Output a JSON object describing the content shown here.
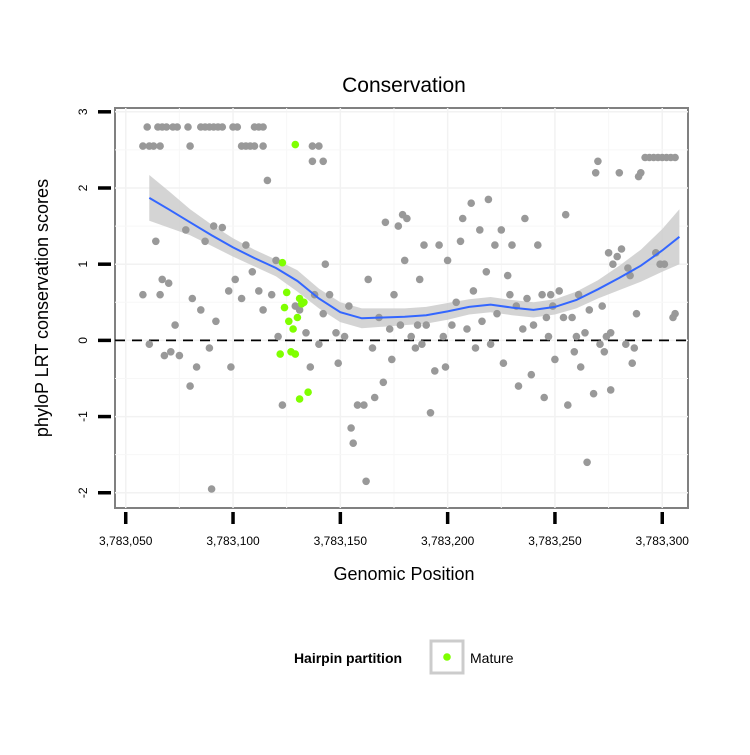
{
  "chart_data": {
    "type": "scatter",
    "title": "Conservation",
    "xlabel": "Genomic Position",
    "ylabel": "phyloP LRT conservation scores",
    "xlim": [
      3783045,
      3783312
    ],
    "ylim": [
      -2.2,
      3.05
    ],
    "x_ticks": [
      3783050,
      3783100,
      3783150,
      3783200,
      3783250,
      3783300
    ],
    "x_tick_labels": [
      "3,783,050",
      "3,783,100",
      "3,783,150",
      "3,783,200",
      "3,783,250",
      "3,783,300"
    ],
    "y_ticks": [
      -2,
      -1,
      0,
      1,
      2,
      3
    ],
    "y_tick_labels": [
      "-2",
      "-1",
      "0",
      "1",
      "2",
      "3"
    ],
    "reference_line": {
      "y": 0,
      "style": "dashed"
    },
    "grid": true,
    "legend": {
      "title": "Hairpin partition",
      "placement": "bottom",
      "entries": [
        {
          "label": "Mature",
          "color": "#7fff00"
        }
      ]
    },
    "colors": {
      "other": "#999999",
      "mature": "#7fff00",
      "smooth": "#3366ff",
      "ribbon": "#cccccc"
    },
    "series": [
      {
        "name": "",
        "color": "#999999",
        "points": [
          [
            3783060,
            2.8
          ],
          [
            3783065,
            2.8
          ],
          [
            3783067,
            2.8
          ],
          [
            3783069,
            2.8
          ],
          [
            3783072,
            2.8
          ],
          [
            3783074,
            2.8
          ],
          [
            3783079,
            2.8
          ],
          [
            3783085,
            2.8
          ],
          [
            3783087,
            2.8
          ],
          [
            3783089,
            2.8
          ],
          [
            3783091,
            2.8
          ],
          [
            3783093,
            2.8
          ],
          [
            3783095,
            2.8
          ],
          [
            3783100,
            2.8
          ],
          [
            3783102,
            2.8
          ],
          [
            3783110,
            2.8
          ],
          [
            3783112,
            2.8
          ],
          [
            3783114,
            2.8
          ],
          [
            3783058,
            2.55
          ],
          [
            3783061,
            2.55
          ],
          [
            3783063,
            2.55
          ],
          [
            3783066,
            2.55
          ],
          [
            3783080,
            2.55
          ],
          [
            3783104,
            2.55
          ],
          [
            3783106,
            2.55
          ],
          [
            3783108,
            2.55
          ],
          [
            3783110,
            2.55
          ],
          [
            3783114,
            2.55
          ],
          [
            3783137,
            2.55
          ],
          [
            3783140,
            2.55
          ],
          [
            3783137,
            2.35
          ],
          [
            3783142,
            2.35
          ],
          [
            3783116,
            2.1
          ],
          [
            3783058,
            0.6
          ],
          [
            3783064,
            1.3
          ],
          [
            3783066,
            0.6
          ],
          [
            3783067,
            0.8
          ],
          [
            3783070,
            0.75
          ],
          [
            3783073,
            0.2
          ],
          [
            3783075,
            -0.2
          ],
          [
            3783078,
            1.45
          ],
          [
            3783080,
            -0.6
          ],
          [
            3783081,
            0.55
          ],
          [
            3783083,
            -0.35
          ],
          [
            3783085,
            0.4
          ],
          [
            3783087,
            1.3
          ],
          [
            3783089,
            -0.1
          ],
          [
            3783091,
            1.5
          ],
          [
            3783092,
            0.25
          ],
          [
            3783095,
            1.48
          ],
          [
            3783098,
            0.65
          ],
          [
            3783099,
            -0.35
          ],
          [
            3783101,
            0.8
          ],
          [
            3783104,
            0.55
          ],
          [
            3783106,
            1.25
          ],
          [
            3783109,
            0.9
          ],
          [
            3783112,
            0.65
          ],
          [
            3783114,
            0.4
          ],
          [
            3783118,
            0.6
          ],
          [
            3783120,
            1.05
          ],
          [
            3783090,
            -1.95
          ],
          [
            3783061,
            -0.05
          ],
          [
            3783068,
            -0.2
          ],
          [
            3783071,
            -0.15
          ],
          [
            3783121,
            0.05
          ],
          [
            3783123,
            -0.85
          ],
          [
            3783129,
            0.45
          ],
          [
            3783131,
            0.4
          ],
          [
            3783134,
            0.1
          ],
          [
            3783136,
            -0.35
          ],
          [
            3783138,
            0.6
          ],
          [
            3783140,
            -0.05
          ],
          [
            3783142,
            0.35
          ],
          [
            3783143,
            1.0
          ],
          [
            3783145,
            0.6
          ],
          [
            3783148,
            0.1
          ],
          [
            3783149,
            -0.3
          ],
          [
            3783152,
            0.05
          ],
          [
            3783154,
            0.45
          ],
          [
            3783155,
            -1.15
          ],
          [
            3783156,
            -1.35
          ],
          [
            3783158,
            -0.85
          ],
          [
            3783161,
            -0.85
          ],
          [
            3783162,
            -1.85
          ],
          [
            3783163,
            0.8
          ],
          [
            3783165,
            -0.1
          ],
          [
            3783166,
            -0.75
          ],
          [
            3783168,
            0.3
          ],
          [
            3783170,
            -0.55
          ],
          [
            3783171,
            1.55
          ],
          [
            3783173,
            0.15
          ],
          [
            3783174,
            -0.25
          ],
          [
            3783175,
            0.6
          ],
          [
            3783177,
            1.5
          ],
          [
            3783178,
            0.2
          ],
          [
            3783179,
            1.65
          ],
          [
            3783180,
            1.05
          ],
          [
            3783181,
            1.6
          ],
          [
            3783183,
            0.05
          ],
          [
            3783185,
            -0.1
          ],
          [
            3783186,
            0.2
          ],
          [
            3783187,
            0.8
          ],
          [
            3783188,
            -0.05
          ],
          [
            3783189,
            1.25
          ],
          [
            3783190,
            0.2
          ],
          [
            3783192,
            -0.95
          ],
          [
            3783194,
            -0.4
          ],
          [
            3783196,
            1.25
          ],
          [
            3783198,
            0.05
          ],
          [
            3783199,
            -0.35
          ],
          [
            3783200,
            1.05
          ],
          [
            3783202,
            0.2
          ],
          [
            3783204,
            0.5
          ],
          [
            3783206,
            1.3
          ],
          [
            3783207,
            1.6
          ],
          [
            3783209,
            0.15
          ],
          [
            3783211,
            1.8
          ],
          [
            3783212,
            0.65
          ],
          [
            3783213,
            -0.1
          ],
          [
            3783215,
            1.45
          ],
          [
            3783216,
            0.25
          ],
          [
            3783218,
            0.9
          ],
          [
            3783219,
            1.85
          ],
          [
            3783220,
            -0.05
          ],
          [
            3783222,
            1.25
          ],
          [
            3783223,
            0.35
          ],
          [
            3783225,
            1.45
          ],
          [
            3783226,
            -0.3
          ],
          [
            3783228,
            0.85
          ],
          [
            3783229,
            0.6
          ],
          [
            3783230,
            1.25
          ],
          [
            3783232,
            0.45
          ],
          [
            3783233,
            -0.6
          ],
          [
            3783235,
            0.15
          ],
          [
            3783236,
            1.6
          ],
          [
            3783237,
            0.55
          ],
          [
            3783239,
            -0.45
          ],
          [
            3783240,
            0.2
          ],
          [
            3783242,
            1.25
          ],
          [
            3783244,
            0.6
          ],
          [
            3783245,
            -0.75
          ],
          [
            3783246,
            0.3
          ],
          [
            3783247,
            0.05
          ],
          [
            3783248,
            0.6
          ],
          [
            3783249,
            0.45
          ],
          [
            3783250,
            -0.25
          ],
          [
            3783252,
            0.65
          ],
          [
            3783254,
            0.3
          ],
          [
            3783255,
            1.65
          ],
          [
            3783256,
            -0.85
          ],
          [
            3783258,
            0.3
          ],
          [
            3783259,
            -0.15
          ],
          [
            3783260,
            0.05
          ],
          [
            3783261,
            0.6
          ],
          [
            3783262,
            -0.35
          ],
          [
            3783264,
            0.1
          ],
          [
            3783265,
            -1.6
          ],
          [
            3783266,
            0.4
          ],
          [
            3783268,
            -0.7
          ],
          [
            3783269,
            2.2
          ],
          [
            3783270,
            2.35
          ],
          [
            3783271,
            -0.05
          ],
          [
            3783272,
            0.45
          ],
          [
            3783273,
            -0.15
          ],
          [
            3783275,
            1.15
          ],
          [
            3783276,
            0.1
          ],
          [
            3783277,
            1.0
          ],
          [
            3783279,
            1.1
          ],
          [
            3783280,
            2.2
          ],
          [
            3783281,
            1.2
          ],
          [
            3783283,
            -0.05
          ],
          [
            3783284,
            0.95
          ],
          [
            3783285,
            0.85
          ],
          [
            3783286,
            -0.3
          ],
          [
            3783288,
            0.35
          ],
          [
            3783289,
            2.15
          ],
          [
            3783290,
            2.2
          ],
          [
            3783292,
            2.4
          ],
          [
            3783294,
            2.4
          ],
          [
            3783296,
            2.4
          ],
          [
            3783298,
            2.4
          ],
          [
            3783300,
            2.4
          ],
          [
            3783302,
            2.4
          ],
          [
            3783304,
            2.4
          ],
          [
            3783306,
            2.4
          ],
          [
            3783297,
            1.15
          ],
          [
            3783299,
            1.0
          ],
          [
            3783301,
            1.0
          ],
          [
            3783305,
            0.3
          ],
          [
            3783306,
            0.35
          ],
          [
            3783274,
            0.05
          ],
          [
            3783276,
            -0.65
          ],
          [
            3783287,
            -0.1
          ]
        ]
      },
      {
        "name": "Mature",
        "color": "#7fff00",
        "points": [
          [
            3783129,
            2.57
          ],
          [
            3783123,
            1.02
          ],
          [
            3783124,
            0.43
          ],
          [
            3783125,
            0.63
          ],
          [
            3783126,
            0.25
          ],
          [
            3783127,
            -0.15
          ],
          [
            3783128,
            0.15
          ],
          [
            3783130,
            0.3
          ],
          [
            3783131,
            0.55
          ],
          [
            3783132,
            0.48
          ],
          [
            3783133,
            0.5
          ],
          [
            3783122,
            -0.18
          ],
          [
            3783129,
            -0.18
          ],
          [
            3783131,
            -0.77
          ],
          [
            3783135,
            -0.68
          ]
        ]
      }
    ],
    "smooth": {
      "color": "#3366ff",
      "x": [
        3783061,
        3783070,
        3783080,
        3783090,
        3783100,
        3783110,
        3783120,
        3783130,
        3783140,
        3783150,
        3783160,
        3783170,
        3783180,
        3783190,
        3783200,
        3783210,
        3783220,
        3783230,
        3783240,
        3783250,
        3783260,
        3783270,
        3783280,
        3783290,
        3783300,
        3783308
      ],
      "y": [
        1.87,
        1.72,
        1.55,
        1.38,
        1.22,
        1.08,
        0.95,
        0.78,
        0.55,
        0.37,
        0.29,
        0.3,
        0.31,
        0.33,
        0.38,
        0.44,
        0.47,
        0.43,
        0.4,
        0.44,
        0.53,
        0.67,
        0.82,
        0.98,
        1.18,
        1.36
      ],
      "lower": [
        1.57,
        1.48,
        1.38,
        1.24,
        1.1,
        0.97,
        0.84,
        0.64,
        0.42,
        0.24,
        0.16,
        0.18,
        0.2,
        0.22,
        0.27,
        0.34,
        0.37,
        0.33,
        0.3,
        0.34,
        0.42,
        0.55,
        0.66,
        0.77,
        0.9,
        1.0
      ],
      "upper": [
        2.17,
        1.96,
        1.72,
        1.52,
        1.34,
        1.19,
        1.06,
        0.92,
        0.68,
        0.5,
        0.42,
        0.42,
        0.42,
        0.44,
        0.49,
        0.54,
        0.57,
        0.53,
        0.5,
        0.54,
        0.64,
        0.79,
        0.98,
        1.19,
        1.46,
        1.72
      ]
    }
  }
}
